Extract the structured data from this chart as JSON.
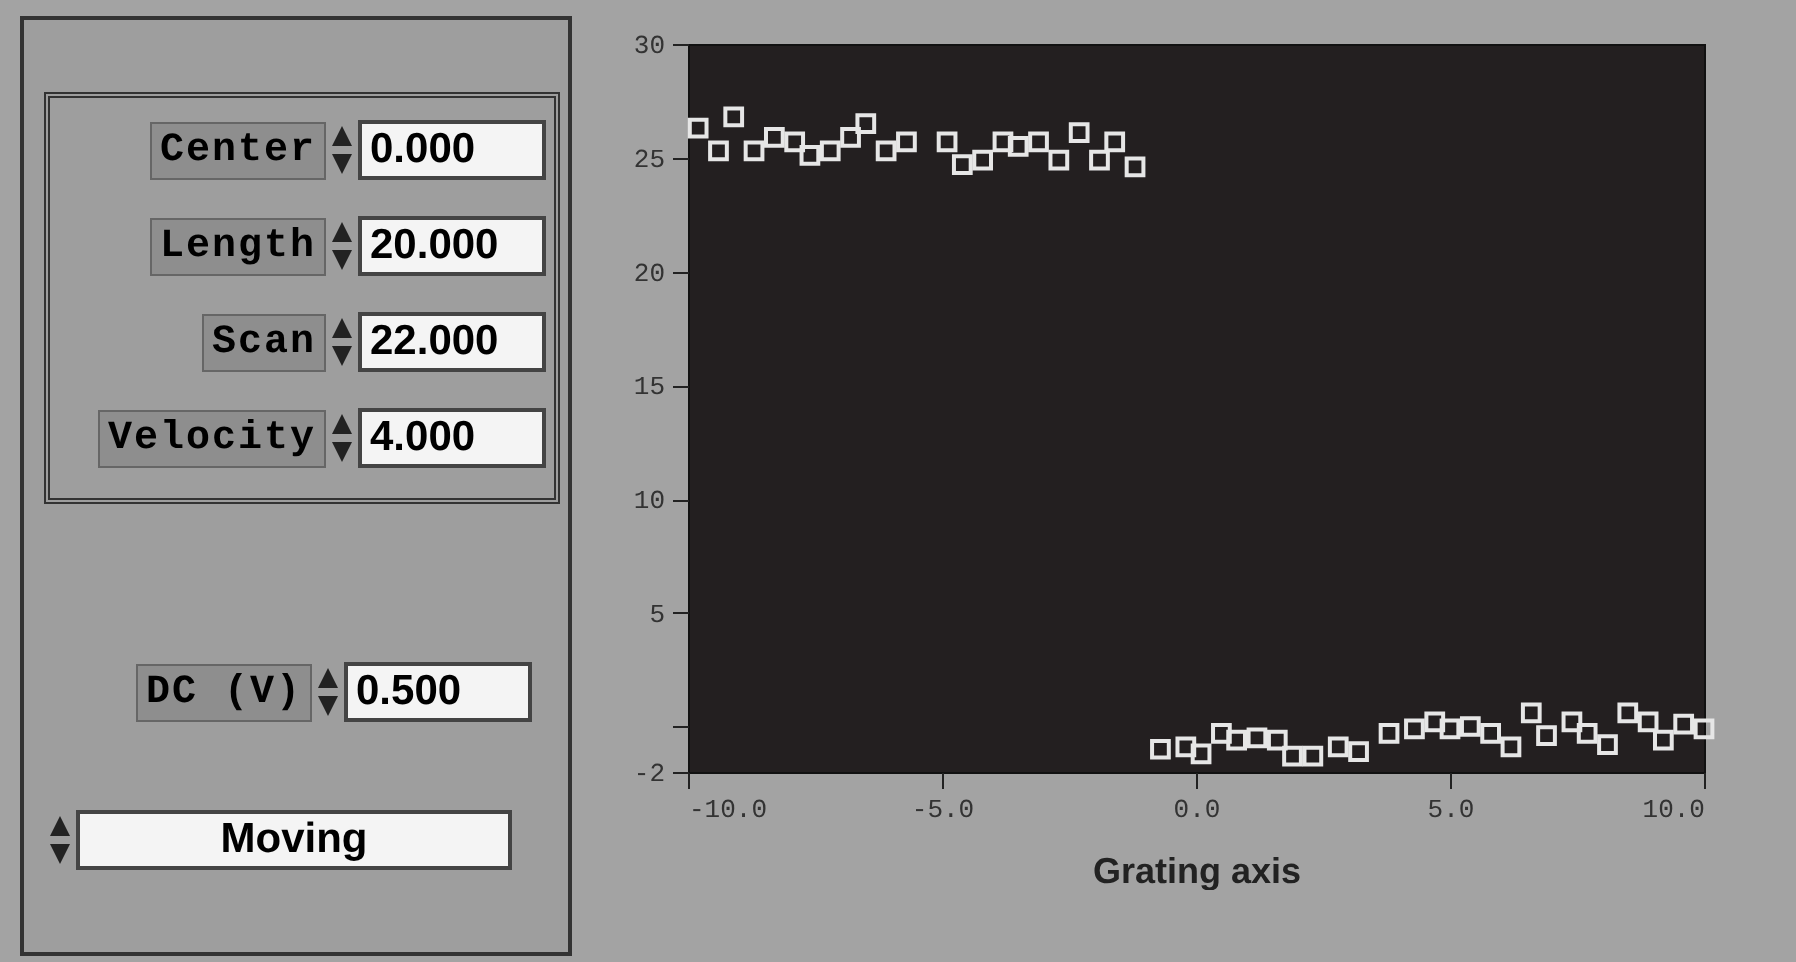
{
  "chart_data": [
    {
      "type": "other",
      "annotations": [
        "Center",
        "0.000",
        "Length",
        "20.000",
        "Scan",
        "22.000",
        "Velocity",
        "4.000",
        "DC (V)",
        "0.500",
        "Moving"
      ]
    },
    {
      "type": "scatter",
      "xlabel": "Grating axis",
      "xlim": [
        -10,
        10
      ],
      "ylim": [
        -2,
        30
      ],
      "xticks": [
        {
          "value": -10,
          "label": "-10.0"
        },
        {
          "value": -5,
          "label": "-5.0"
        },
        {
          "value": 0,
          "label": "0.0"
        },
        {
          "value": 5,
          "label": "5.0"
        },
        {
          "value": 10,
          "label": "10.0"
        }
      ],
      "yticks": [
        -2,
        {
          "value": 0,
          "label": null
        },
        5,
        10,
        15,
        20,
        25,
        30
      ],
      "marker": "square",
      "grid": false,
      "series": [
        {
          "color": "#e6e6e6",
          "x": [
            -9.8,
            -9.4,
            -9.1,
            -8.7,
            -8.3,
            -7.9,
            -7.6,
            -7.2,
            -6.8,
            -6.5,
            -6.1,
            -5.7,
            -4.9,
            -4.6,
            -4.2,
            -3.8,
            -3.5,
            -3.1,
            -2.7,
            -2.3,
            -1.9,
            -1.6,
            -1.2,
            -0.7,
            -0.2,
            0.1,
            0.5,
            0.8,
            1.2,
            1.6,
            1.9,
            2.3,
            2.8,
            3.2,
            3.8,
            4.3,
            4.7,
            5.0,
            5.4,
            5.8,
            6.2,
            6.6,
            6.9,
            7.4,
            7.7,
            8.1,
            8.5,
            8.9,
            9.2,
            9.6,
            10.0
          ],
          "values": [
            26.3,
            25.3,
            26.8,
            25.3,
            25.9,
            25.7,
            25.1,
            25.3,
            25.9,
            26.5,
            25.3,
            25.7,
            25.7,
            24.7,
            24.9,
            25.7,
            25.5,
            25.7,
            24.9,
            26.1,
            24.9,
            25.7,
            24.6,
            -1.0,
            -0.9,
            -1.2,
            -0.3,
            -0.6,
            -0.5,
            -0.6,
            -1.3,
            -1.3,
            -0.9,
            -1.1,
            -0.3,
            -0.1,
            0.2,
            -0.1,
            0.0,
            -0.3,
            -0.9,
            0.6,
            -0.4,
            0.2,
            -0.3,
            -0.8,
            0.6,
            0.2,
            -0.6,
            0.1,
            -0.1
          ]
        }
      ]
    }
  ]
}
